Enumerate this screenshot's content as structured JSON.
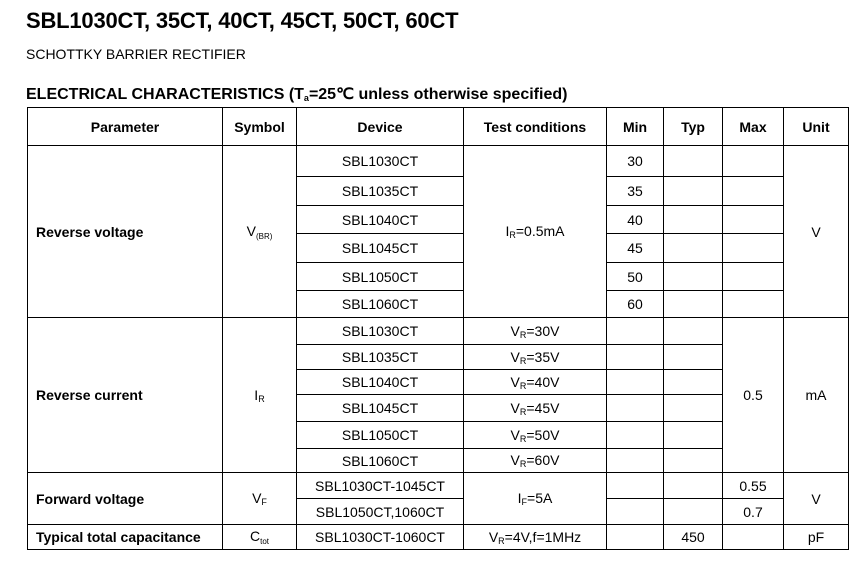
{
  "title": "SBL1030CT, 35CT, 40CT, 45CT, 50CT, 60CT",
  "subtitle": "SCHOTTKY BARRIER RECTIFIER",
  "section": {
    "prefix": "ELECTRICAL CHARACTERISTICS (T",
    "sub": "a",
    "suffix": "=25℃ unless otherwise specified)"
  },
  "headers": [
    "Parameter",
    "Symbol",
    "Device",
    "Test conditions",
    "Min",
    "Typ",
    "Max",
    "Unit"
  ],
  "rv": {
    "param": "Reverse voltage",
    "sym": "V",
    "sym_sub": "(BR)",
    "cond": "I",
    "cond_sub": "R",
    "cond_rest": "=0.5mA",
    "unit": "V",
    "devices": [
      "SBL1030CT",
      "SBL1035CT",
      "SBL1040CT",
      "SBL1045CT",
      "SBL1050CT",
      "SBL1060CT"
    ],
    "min": [
      "30",
      "35",
      "40",
      "45",
      "50",
      "60"
    ]
  },
  "rc": {
    "param": "Reverse current",
    "sym": "I",
    "sym_sub": "R",
    "max": "0.5",
    "unit": "mA",
    "devices": [
      "SBL1030CT",
      "SBL1035CT",
      "SBL1040CT",
      "SBL1045CT",
      "SBL1050CT",
      "SBL1060CT"
    ],
    "cond_main": "V",
    "cond_sub": "R",
    "cond_rest": [
      "=30V",
      "=35V",
      "=40V",
      "=45V",
      "=50V",
      "=60V"
    ]
  },
  "fv": {
    "param": "Forward voltage",
    "sym": "V",
    "sym_sub": "F",
    "cond": "I",
    "cond_sub": "F",
    "cond_rest": "=5A",
    "unit": "V",
    "devices": [
      "SBL1030CT-1045CT",
      "SBL1050CT,1060CT"
    ],
    "max": [
      "0.55",
      "0.7"
    ]
  },
  "cap": {
    "param": "Typical total capacitance",
    "sym": "C",
    "sym_sub": "tot",
    "device": "SBL1030CT-1060CT",
    "cond": "V",
    "cond_sub": "R",
    "cond_rest": "=4V,f=1MHz",
    "typ": "450",
    "unit": "pF"
  }
}
